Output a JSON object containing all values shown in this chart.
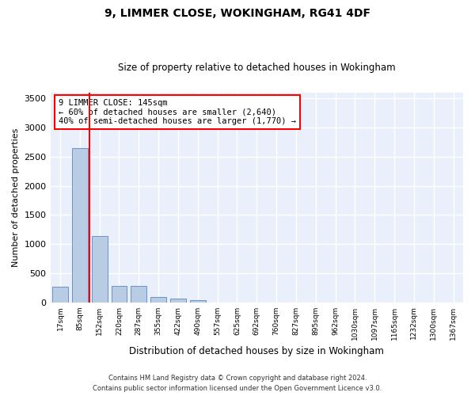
{
  "title": "9, LIMMER CLOSE, WOKINGHAM, RG41 4DF",
  "subtitle": "Size of property relative to detached houses in Wokingham",
  "xlabel": "Distribution of detached houses by size in Wokingham",
  "ylabel": "Number of detached properties",
  "bar_color": "#b8cce4",
  "bar_edge_color": "#4472c4",
  "categories": [
    "17sqm",
    "85sqm",
    "152sqm",
    "220sqm",
    "287sqm",
    "355sqm",
    "422sqm",
    "490sqm",
    "557sqm",
    "625sqm",
    "692sqm",
    "760sqm",
    "827sqm",
    "895sqm",
    "962sqm",
    "1030sqm",
    "1097sqm",
    "1165sqm",
    "1232sqm",
    "1300sqm",
    "1367sqm"
  ],
  "values": [
    270,
    2640,
    1140,
    280,
    285,
    90,
    60,
    40,
    0,
    0,
    0,
    0,
    0,
    0,
    0,
    0,
    0,
    0,
    0,
    0,
    0
  ],
  "ylim": [
    0,
    3600
  ],
  "yticks": [
    0,
    500,
    1000,
    1500,
    2000,
    2500,
    3000,
    3500
  ],
  "vline_x_index": 2,
  "annotation_text": "9 LIMMER CLOSE: 145sqm\n← 60% of detached houses are smaller (2,640)\n40% of semi-detached houses are larger (1,770) →",
  "footer1": "Contains HM Land Registry data © Crown copyright and database right 2024.",
  "footer2": "Contains public sector information licensed under the Open Government Licence v3.0.",
  "background_color": "#eaf0fb",
  "grid_color": "#ffffff",
  "fig_facecolor": "#ffffff",
  "title_fontsize": 10,
  "subtitle_fontsize": 8.5,
  "ylabel_fontsize": 8,
  "xlabel_fontsize": 8.5
}
